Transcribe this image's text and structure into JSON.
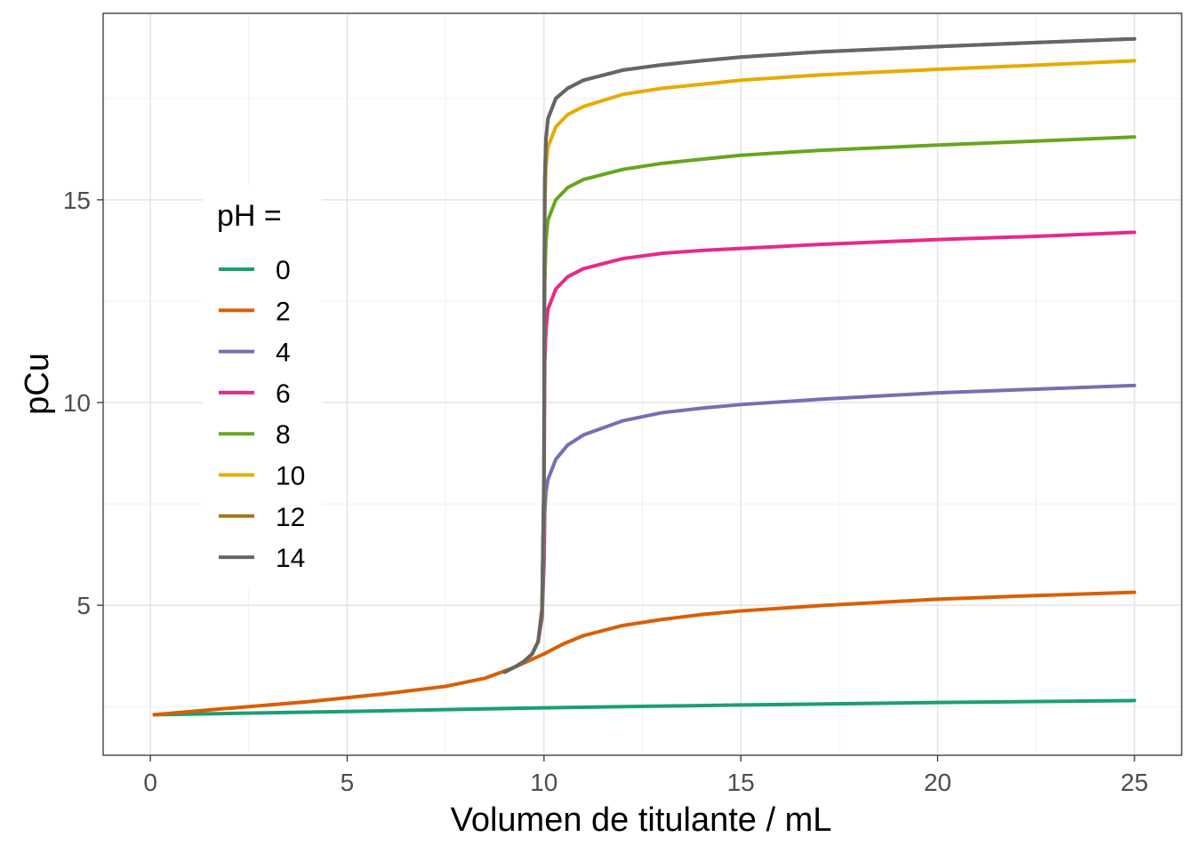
{
  "chart_data": {
    "type": "line",
    "title": "",
    "xlabel": "Volumen de titulante / mL",
    "ylabel": "pCu",
    "xlim": [
      -1.2,
      26.2
    ],
    "ylim": [
      1.3,
      19.6
    ],
    "x_ticks": [
      0,
      5,
      10,
      15,
      20,
      25
    ],
    "y_ticks": [
      5,
      10,
      15
    ],
    "x_tick_labels": [
      "0",
      "5",
      "10",
      "15",
      "20",
      "25"
    ],
    "y_tick_labels": [
      "5",
      "10",
      "15"
    ],
    "grid": true,
    "legend": {
      "title": "pH =",
      "position": "inside-left"
    },
    "series": [
      {
        "name": "0",
        "color": "#1B9E77",
        "points": [
          [
            0.1,
            2.3
          ],
          [
            5,
            2.38
          ],
          [
            10,
            2.47
          ],
          [
            15,
            2.54
          ],
          [
            20,
            2.6
          ],
          [
            25,
            2.65
          ]
        ]
      },
      {
        "name": "2",
        "color": "#D95F02",
        "points": [
          [
            0.1,
            2.3
          ],
          [
            2,
            2.46
          ],
          [
            4,
            2.62
          ],
          [
            6,
            2.82
          ],
          [
            7.5,
            3.0
          ],
          [
            8.5,
            3.2
          ],
          [
            9.2,
            3.45
          ],
          [
            10,
            3.8
          ],
          [
            10.5,
            4.05
          ],
          [
            11,
            4.25
          ],
          [
            12,
            4.5
          ],
          [
            13,
            4.65
          ],
          [
            14,
            4.77
          ],
          [
            15,
            4.86
          ],
          [
            17,
            4.99
          ],
          [
            20,
            5.15
          ],
          [
            22.5,
            5.24
          ],
          [
            25,
            5.32
          ]
        ]
      },
      {
        "name": "4",
        "color": "#7570B3",
        "points": [
          [
            9.0,
            3.35
          ],
          [
            9.3,
            3.5
          ],
          [
            9.5,
            3.62
          ],
          [
            9.7,
            3.8
          ],
          [
            9.85,
            4.1
          ],
          [
            9.95,
            4.7
          ],
          [
            10.0,
            6.0
          ],
          [
            10.02,
            7.3
          ],
          [
            10.05,
            7.8
          ],
          [
            10.1,
            8.1
          ],
          [
            10.3,
            8.6
          ],
          [
            10.6,
            8.95
          ],
          [
            11,
            9.2
          ],
          [
            12,
            9.55
          ],
          [
            13,
            9.75
          ],
          [
            14,
            9.86
          ],
          [
            15,
            9.95
          ],
          [
            17,
            10.08
          ],
          [
            20,
            10.24
          ],
          [
            22.5,
            10.33
          ],
          [
            25,
            10.42
          ]
        ]
      },
      {
        "name": "6",
        "color": "#E7298A",
        "points": [
          [
            9.0,
            3.35
          ],
          [
            9.3,
            3.5
          ],
          [
            9.5,
            3.62
          ],
          [
            9.7,
            3.8
          ],
          [
            9.85,
            4.1
          ],
          [
            9.95,
            4.7
          ],
          [
            10.0,
            6.5
          ],
          [
            10.01,
            9.7
          ],
          [
            10.02,
            11.0
          ],
          [
            10.05,
            11.8
          ],
          [
            10.1,
            12.3
          ],
          [
            10.3,
            12.8
          ],
          [
            10.6,
            13.1
          ],
          [
            11,
            13.3
          ],
          [
            12,
            13.55
          ],
          [
            13,
            13.68
          ],
          [
            14,
            13.75
          ],
          [
            15,
            13.8
          ],
          [
            17,
            13.9
          ],
          [
            20,
            14.02
          ],
          [
            22.5,
            14.1
          ],
          [
            25,
            14.2
          ]
        ]
      },
      {
        "name": "8",
        "color": "#66A61E",
        "points": [
          [
            9.0,
            3.35
          ],
          [
            9.3,
            3.5
          ],
          [
            9.5,
            3.62
          ],
          [
            9.7,
            3.8
          ],
          [
            9.85,
            4.1
          ],
          [
            9.95,
            4.8
          ],
          [
            10.0,
            7.5
          ],
          [
            10.01,
            11.5
          ],
          [
            10.02,
            13.0
          ],
          [
            10.05,
            14.0
          ],
          [
            10.1,
            14.5
          ],
          [
            10.3,
            15.0
          ],
          [
            10.6,
            15.3
          ],
          [
            11,
            15.5
          ],
          [
            12,
            15.75
          ],
          [
            13,
            15.9
          ],
          [
            14,
            16.0
          ],
          [
            15,
            16.1
          ],
          [
            17,
            16.22
          ],
          [
            20,
            16.35
          ],
          [
            22.5,
            16.45
          ],
          [
            25,
            16.55
          ]
        ]
      },
      {
        "name": "10",
        "color": "#E6AB02",
        "points": [
          [
            9.0,
            3.35
          ],
          [
            9.3,
            3.5
          ],
          [
            9.5,
            3.62
          ],
          [
            9.7,
            3.8
          ],
          [
            9.85,
            4.1
          ],
          [
            9.95,
            4.9
          ],
          [
            10.0,
            8.0
          ],
          [
            10.01,
            13.0
          ],
          [
            10.02,
            14.8
          ],
          [
            10.05,
            15.8
          ],
          [
            10.1,
            16.3
          ],
          [
            10.3,
            16.8
          ],
          [
            10.6,
            17.1
          ],
          [
            11,
            17.3
          ],
          [
            12,
            17.6
          ],
          [
            13,
            17.75
          ],
          [
            14,
            17.85
          ],
          [
            15,
            17.95
          ],
          [
            17,
            18.08
          ],
          [
            20,
            18.22
          ],
          [
            22.5,
            18.32
          ],
          [
            25,
            18.43
          ]
        ]
      },
      {
        "name": "12",
        "color": "#A6761D",
        "points": [
          [
            9.0,
            3.35
          ],
          [
            9.3,
            3.5
          ],
          [
            9.5,
            3.62
          ],
          [
            9.7,
            3.8
          ],
          [
            9.85,
            4.1
          ],
          [
            9.95,
            4.9
          ],
          [
            10.0,
            8.2
          ],
          [
            10.01,
            13.5
          ],
          [
            10.02,
            15.5
          ],
          [
            10.05,
            16.5
          ],
          [
            10.1,
            17.0
          ],
          [
            10.3,
            17.5
          ],
          [
            10.6,
            17.75
          ],
          [
            11,
            17.95
          ],
          [
            12,
            18.2
          ],
          [
            13,
            18.33
          ],
          [
            14,
            18.43
          ],
          [
            15,
            18.52
          ],
          [
            17,
            18.65
          ],
          [
            20,
            18.78
          ],
          [
            22.5,
            18.88
          ],
          [
            25,
            18.97
          ]
        ]
      },
      {
        "name": "14",
        "color": "#666666",
        "points": [
          [
            9.0,
            3.35
          ],
          [
            9.3,
            3.5
          ],
          [
            9.5,
            3.62
          ],
          [
            9.7,
            3.8
          ],
          [
            9.85,
            4.1
          ],
          [
            9.95,
            4.9
          ],
          [
            10.0,
            8.2
          ],
          [
            10.01,
            13.5
          ],
          [
            10.02,
            15.5
          ],
          [
            10.05,
            16.5
          ],
          [
            10.1,
            17.0
          ],
          [
            10.3,
            17.5
          ],
          [
            10.6,
            17.75
          ],
          [
            11,
            17.95
          ],
          [
            12,
            18.2
          ],
          [
            13,
            18.33
          ],
          [
            14,
            18.43
          ],
          [
            15,
            18.52
          ],
          [
            17,
            18.65
          ],
          [
            20,
            18.78
          ],
          [
            22.5,
            18.88
          ],
          [
            25,
            18.97
          ]
        ]
      }
    ]
  }
}
